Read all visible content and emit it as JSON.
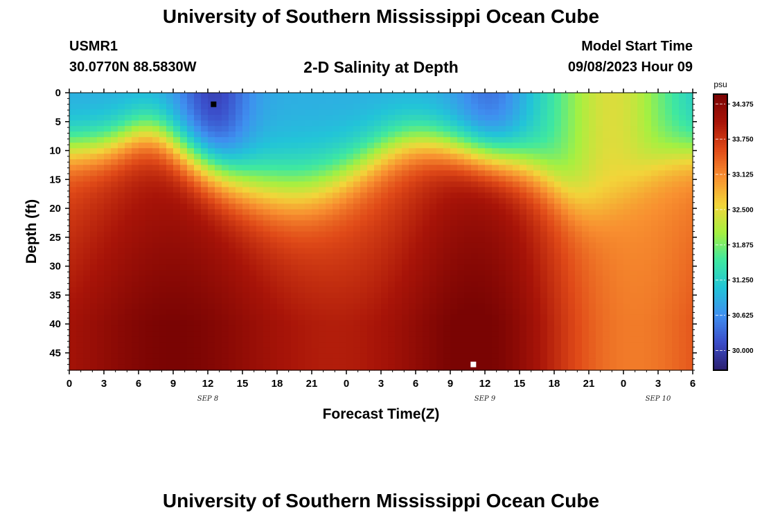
{
  "header": {
    "title": "University of Southern Mississippi Ocean Cube",
    "station_id": "USMR1",
    "coords": "30.0770N  88.5830W",
    "subtitle": "2-D Salinity at Depth",
    "start_label": "Model Start Time",
    "start_value": "09/08/2023 Hour 09"
  },
  "footer": {
    "title": "University of Southern Mississippi Ocean Cube"
  },
  "colors": {
    "colormap": [
      "#2c1e6e",
      "#3b4cc8",
      "#3f8ff0",
      "#22c4d8",
      "#3fe8a0",
      "#a6f040",
      "#f2d53a",
      "#f89030",
      "#e04a18",
      "#a81408",
      "#7a0403"
    ],
    "min_marker": "#000000",
    "max_marker": "#ffffff"
  },
  "chart_data": {
    "type": "heatmap",
    "title": "2-D Salinity at Depth",
    "xlabel": "Forecast Time(Z)",
    "ylabel": "Depth (ft)",
    "x_ticks": [
      "0",
      "3",
      "6",
      "9",
      "12",
      "15",
      "18",
      "21",
      "0",
      "3",
      "6",
      "9",
      "12",
      "15",
      "18",
      "21",
      "0",
      "3",
      "6"
    ],
    "date_labels": [
      {
        "label": "SEP 8",
        "hour": 12
      },
      {
        "label": "SEP 9",
        "hour": 36
      },
      {
        "label": "SEP 10",
        "hour": 51
      }
    ],
    "xlim": [
      0,
      54
    ],
    "y_ticks": [
      0,
      5,
      10,
      15,
      20,
      25,
      30,
      35,
      40,
      45
    ],
    "ylim": [
      0,
      48
    ],
    "y_inverted": true,
    "colorbar": {
      "unit": "psu",
      "ticks": [
        "34.375",
        "33.750",
        "33.125",
        "32.500",
        "31.875",
        "31.250",
        "30.625",
        "30.000"
      ],
      "range": [
        29.65,
        34.55
      ]
    },
    "grid": false,
    "min_marker": {
      "hour": 12.5,
      "depth": 2
    },
    "max_marker": {
      "hour": 35,
      "depth": 47
    }
  }
}
